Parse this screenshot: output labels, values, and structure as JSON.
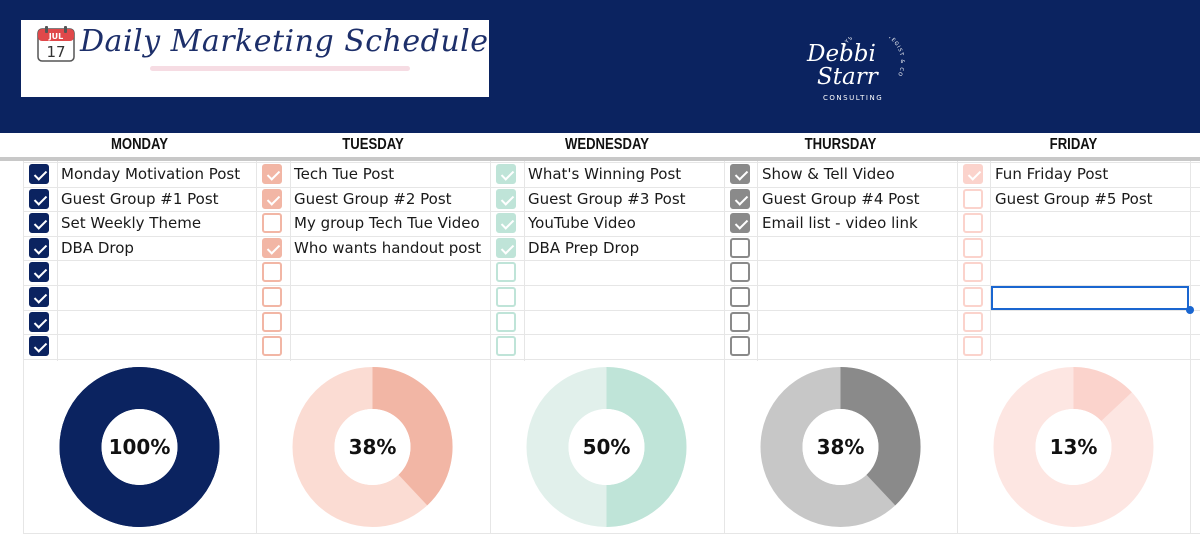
{
  "header": {
    "title": "Daily Marketing Schedule",
    "calendar_month": "JUL",
    "calendar_day": "17",
    "brand_line1": "Debbi",
    "brand_line2": "Starr",
    "brand_sub": "CONSULTING",
    "brand_arc": "SYSTEMS STRATEGIST & COACH",
    "bg_color": "#0b2360"
  },
  "days": [
    {
      "name": "MONDAY",
      "color": "#0b2360",
      "light": "#0b2360",
      "percent_label": "100%",
      "progress": 1.0,
      "tasks": [
        {
          "text": "Monday Motivation Post",
          "checked": true
        },
        {
          "text": "Guest Group #1 Post",
          "checked": true
        },
        {
          "text": "Set Weekly Theme",
          "checked": true
        },
        {
          "text": "DBA Drop",
          "checked": true
        },
        {
          "text": "",
          "checked": true
        },
        {
          "text": "",
          "checked": true
        },
        {
          "text": "",
          "checked": true
        },
        {
          "text": "",
          "checked": true
        }
      ]
    },
    {
      "name": "TUESDAY",
      "color": "#f2b6a5",
      "light": "#fbdcd3",
      "percent_label": "38%",
      "progress": 0.38,
      "tasks": [
        {
          "text": "Tech Tue Post",
          "checked": true
        },
        {
          "text": "Guest Group #2 Post",
          "checked": true
        },
        {
          "text": "My group Tech Tue Video",
          "checked": false
        },
        {
          "text": "Who wants handout post",
          "checked": true
        },
        {
          "text": "",
          "checked": false
        },
        {
          "text": "",
          "checked": false
        },
        {
          "text": "",
          "checked": false
        },
        {
          "text": "",
          "checked": false
        }
      ]
    },
    {
      "name": "WEDNESDAY",
      "color": "#bfe4d8",
      "light": "#e1f0eb",
      "percent_label": "50%",
      "progress": 0.5,
      "tasks": [
        {
          "text": "What's Winning Post",
          "checked": true
        },
        {
          "text": "Guest Group #3 Post",
          "checked": true
        },
        {
          "text": "YouTube Video",
          "checked": true
        },
        {
          "text": "DBA Prep Drop",
          "checked": true
        },
        {
          "text": "",
          "checked": false
        },
        {
          "text": "",
          "checked": false
        },
        {
          "text": "",
          "checked": false
        },
        {
          "text": "",
          "checked": false
        }
      ]
    },
    {
      "name": "THURSDAY",
      "color": "#8a8a8a",
      "light": "#c7c7c7",
      "percent_label": "38%",
      "progress": 0.38,
      "tasks": [
        {
          "text": "Show & Tell Video",
          "checked": true
        },
        {
          "text": "Guest Group #4 Post",
          "checked": true
        },
        {
          "text": "Email list - video link",
          "checked": true
        },
        {
          "text": "",
          "checked": false
        },
        {
          "text": "",
          "checked": false
        },
        {
          "text": "",
          "checked": false
        },
        {
          "text": "",
          "checked": false
        },
        {
          "text": "",
          "checked": false
        }
      ]
    },
    {
      "name": "FRIDAY",
      "color": "#fbd3cc",
      "light": "#fde6e2",
      "percent_label": "13%",
      "progress": 0.13,
      "tasks": [
        {
          "text": "Fun Friday Post",
          "checked": true
        },
        {
          "text": "Guest Group #5 Post",
          "checked": false
        },
        {
          "text": "",
          "checked": false
        },
        {
          "text": "",
          "checked": false
        },
        {
          "text": "",
          "checked": false
        },
        {
          "text": "",
          "checked": false
        },
        {
          "text": "",
          "checked": false
        },
        {
          "text": "",
          "checked": false
        }
      ]
    }
  ]
}
